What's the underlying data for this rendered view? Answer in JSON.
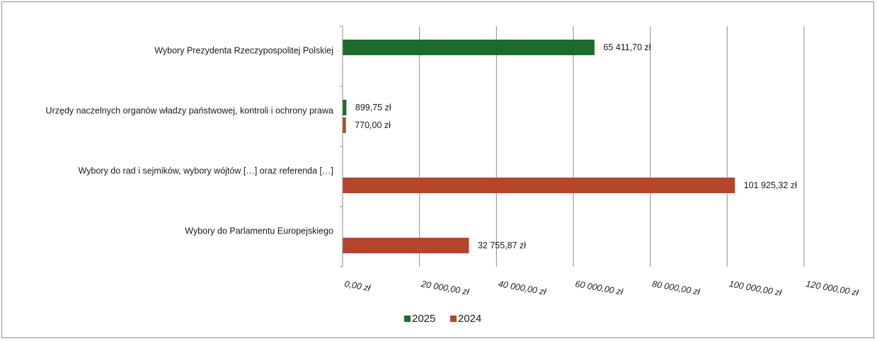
{
  "chart_data": {
    "type": "bar",
    "orientation": "horizontal",
    "categories": [
      "Wybory Prezydenta Rzeczypospolitej Polskiej",
      "Urzędy naczelnych organów władzy państwowej, kontroli i ochrony prawa",
      "Wybory do rad i sejmików, wybory wójtów […] oraz referenda […]",
      "Wybory do Parlamentu Europejskiego"
    ],
    "series": [
      {
        "name": "2025",
        "color": "#1e6b2e",
        "values": [
          65411.7,
          899.75,
          null,
          null
        ],
        "labels": [
          "65 411,70 zł",
          "899,75 zł",
          "",
          ""
        ]
      },
      {
        "name": "2024",
        "color": "#b5452b",
        "values": [
          null,
          770.0,
          101925.32,
          32755.87
        ],
        "labels": [
          "",
          "770,00 zł",
          "101 925,32 zł",
          "32 755,87 zł"
        ]
      }
    ],
    "xlim": [
      0,
      120000
    ],
    "xticks": [
      0,
      20000,
      40000,
      60000,
      80000,
      100000,
      120000
    ],
    "xtick_labels": [
      "0,00 zł",
      "20 000,00 zł",
      "40 000,00 zł",
      "60 000,00 zł",
      "80 000,00 zł",
      "100 000,00 zł",
      "120 000,00 zł"
    ],
    "grid": true,
    "legend_position": "bottom"
  }
}
